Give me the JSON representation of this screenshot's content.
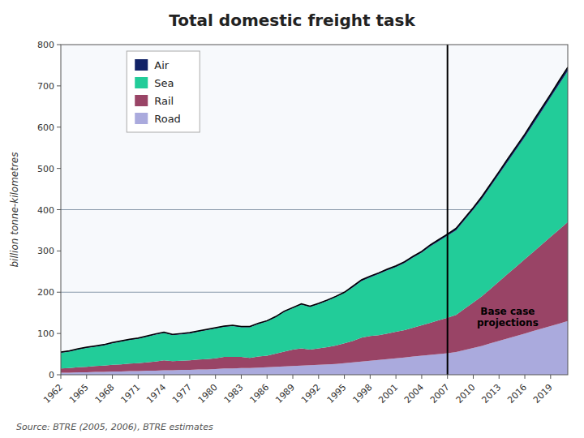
{
  "chart_data": {
    "type": "area",
    "stacked": true,
    "title": "Total domestic freight task",
    "ylabel": "billion tonne-kilometres",
    "source": "Source: BTRE (2005, 2006), BTRE estimates",
    "annotations": [
      {
        "text": "Base case\nprojections",
        "x": 2014,
        "y": 140
      }
    ],
    "vlines": [
      2007
    ],
    "hlines": [
      200,
      400
    ],
    "grid": false,
    "legend": "upper left",
    "x": [
      1962,
      1963,
      1964,
      1965,
      1966,
      1967,
      1968,
      1969,
      1970,
      1971,
      1972,
      1973,
      1974,
      1975,
      1976,
      1977,
      1978,
      1979,
      1980,
      1981,
      1982,
      1983,
      1984,
      1985,
      1986,
      1987,
      1988,
      1989,
      1990,
      1991,
      1992,
      1993,
      1994,
      1995,
      1996,
      1997,
      1998,
      1999,
      2000,
      2001,
      2002,
      2003,
      2004,
      2005,
      2006,
      2007,
      2008,
      2009,
      2010,
      2011,
      2012,
      2013,
      2014,
      2015,
      2016,
      2017,
      2018,
      2019,
      2020,
      2021
    ],
    "xlim": [
      1962,
      2021
    ],
    "xticks": [
      1962,
      1965,
      1968,
      1971,
      1974,
      1977,
      1980,
      1983,
      1986,
      1989,
      1992,
      1995,
      1998,
      2001,
      2004,
      2007,
      2010,
      2013,
      2016,
      2019
    ],
    "ylim": [
      0,
      800
    ],
    "yticks": [
      0,
      100,
      200,
      300,
      400,
      500,
      600,
      700,
      800
    ],
    "series": [
      {
        "name": "Road",
        "color": "#aaaadd",
        "values": [
          5,
          5,
          6,
          6,
          7,
          7,
          8,
          8,
          9,
          9,
          10,
          10,
          11,
          11,
          12,
          12,
          13,
          13,
          14,
          15,
          15,
          16,
          16,
          17,
          18,
          19,
          20,
          21,
          22,
          23,
          24,
          25,
          26,
          28,
          30,
          32,
          34,
          36,
          38,
          40,
          42,
          44,
          46,
          48,
          50,
          52,
          55,
          60,
          65,
          70,
          76,
          82,
          88,
          94,
          100,
          106,
          112,
          118,
          124,
          130
        ]
      },
      {
        "name": "Rail",
        "color": "#994466",
        "values": [
          10,
          11,
          12,
          13,
          14,
          15,
          16,
          17,
          18,
          19,
          20,
          22,
          24,
          22,
          22,
          23,
          24,
          25,
          26,
          28,
          28,
          27,
          25,
          27,
          28,
          32,
          36,
          40,
          42,
          38,
          40,
          42,
          45,
          48,
          52,
          58,
          60,
          60,
          62,
          64,
          66,
          70,
          74,
          78,
          82,
          86,
          90,
          100,
          110,
          120,
          132,
          144,
          156,
          168,
          180,
          192,
          204,
          216,
          228,
          240
        ]
      },
      {
        "name": "Sea",
        "color": "#22cc99",
        "values": [
          38,
          40,
          43,
          46,
          47,
          49,
          52,
          55,
          57,
          59,
          62,
          65,
          66,
          63,
          64,
          65,
          67,
          70,
          72,
          73,
          75,
          72,
          74,
          79,
          83,
          88,
          96,
          100,
          106,
          103,
          107,
          112,
          117,
          122,
          130,
          137,
          142,
          148,
          153,
          157,
          163,
          170,
          176,
          185,
          192,
          199,
          205,
          215,
          225,
          236,
          248,
          260,
          272,
          284,
          296,
          310,
          324,
          338,
          352,
          366
        ]
      },
      {
        "name": "Air",
        "color": "#112266",
        "values": [
          2,
          2,
          2,
          2,
          2,
          2,
          2,
          2,
          2,
          2,
          2,
          2,
          2,
          2,
          2,
          2,
          2,
          2,
          2,
          2,
          2,
          2,
          2,
          2,
          2,
          2,
          2,
          2,
          2,
          2,
          2,
          2,
          2,
          2,
          3,
          3,
          3,
          3,
          3,
          3,
          3,
          3,
          3,
          4,
          4,
          4,
          5,
          5,
          5,
          6,
          6,
          6,
          7,
          7,
          7,
          8,
          8,
          8,
          9,
          9
        ]
      }
    ]
  }
}
